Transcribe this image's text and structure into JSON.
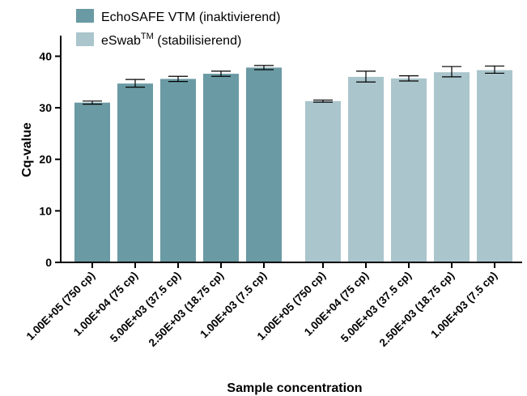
{
  "chart_data": {
    "type": "bar",
    "xlabel": "Sample concentration",
    "ylabel": "Cq-value",
    "ylim": [
      0,
      44
    ],
    "yticks": [
      0,
      10,
      20,
      30,
      40
    ],
    "grid": false,
    "legend_position": "top-left",
    "groups": [
      {
        "series": "EchoSAFE VTM (inaktivierend)",
        "color": "#6a9aa3",
        "categories": [
          "1.00E+05 (750 cp)",
          "1.00E+04 (75 cp)",
          "5.00E+03 (37.5 cp)",
          "2.50E+03 (18.75 cp)",
          "1.00E+03 (7.5 cp)"
        ],
        "values": [
          31.0,
          34.7,
          35.6,
          36.6,
          37.8
        ],
        "err_low": [
          0.3,
          0.7,
          0.5,
          0.5,
          0.4
        ],
        "err_high": [
          0.3,
          0.8,
          0.5,
          0.5,
          0.4
        ]
      },
      {
        "series": "eSwab™ (stabilisierend)",
        "color": "#aac5cc",
        "categories": [
          "1.00E+05 (750 cp)",
          "1.00E+04 (75 cp)",
          "5.00E+03 (37.5 cp)",
          "2.50E+03 (18.75 cp)",
          "1.00E+03 (7.5 cp)"
        ],
        "values": [
          31.3,
          36.0,
          35.7,
          36.9,
          37.3
        ],
        "err_low": [
          0.2,
          1.0,
          0.5,
          0.9,
          0.6
        ],
        "err_high": [
          0.2,
          1.1,
          0.5,
          1.1,
          0.8
        ]
      }
    ],
    "legend": [
      {
        "base": "EchoSAFE VTM (inaktivierend)",
        "sup": "",
        "tail": "",
        "color": "#6a9aa3"
      },
      {
        "base": "eSwab",
        "sup": "TM",
        "tail": " (stabilisierend)",
        "color": "#aac5cc"
      }
    ]
  }
}
